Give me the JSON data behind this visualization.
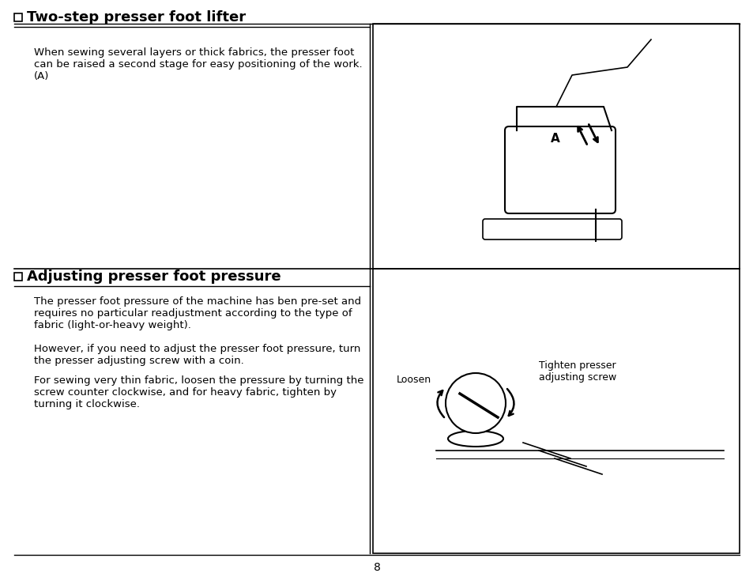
{
  "bg_color": "#ffffff",
  "page_number": "8",
  "top_section": {
    "title": "□  Two-step presser foot lifter",
    "body": "When sewing several layers or thick fabrics, the presser foot\ncan be raised a second stage for easy positioning of the work.\n(A)"
  },
  "bottom_section": {
    "title": "□  Adjusting presser foot pressure",
    "body1": "The presser foot pressure of the machine has ben pre-set and\nrequires no particular readjustment according to the type of\nfabric (light-or-heavy weight).",
    "body2": "However, if you need to adjust the presser foot pressure, turn\nthe presser adjusting screw with a coin.",
    "body3": "For sewing very thin fabric, loosen the pressure by turning the\nscrew counter clockwise, and for heavy fabric, tighten by\nturning it clockwise."
  },
  "image1_label": "Loosen",
  "image1_label2": "Tighten presser\nadjusting screw",
  "divider_color": "#000000",
  "text_color": "#000000",
  "title_fontsize": 13,
  "body_fontsize": 9.5,
  "page_num_fontsize": 10
}
